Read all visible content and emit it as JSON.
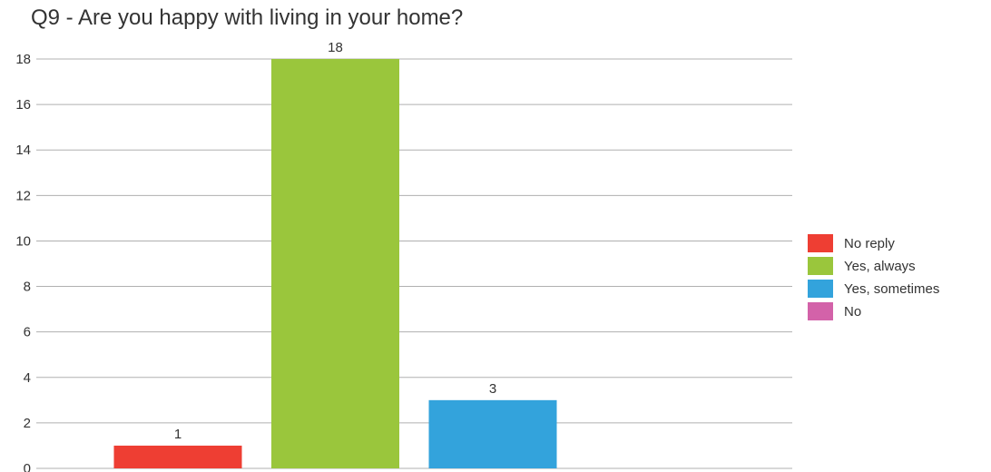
{
  "chart_data": {
    "type": "bar",
    "title": "Q9 - Are you happy with living in your home?",
    "xlabel": "",
    "ylabel": "",
    "ylim": [
      0,
      18
    ],
    "yticks": [
      0,
      2,
      4,
      6,
      8,
      10,
      12,
      14,
      16,
      18
    ],
    "grid": true,
    "legend_position": "right",
    "series": [
      {
        "name": "No reply",
        "value": 1,
        "color": "#ee3e33"
      },
      {
        "name": "Yes, always",
        "value": 18,
        "color": "#9ac63c"
      },
      {
        "name": "Yes, sometimes",
        "value": 3,
        "color": "#33a3dc"
      },
      {
        "name": "No",
        "value": 0,
        "color": "#d362a9"
      }
    ],
    "data_labels": [
      "1",
      "18",
      "3",
      ""
    ]
  }
}
